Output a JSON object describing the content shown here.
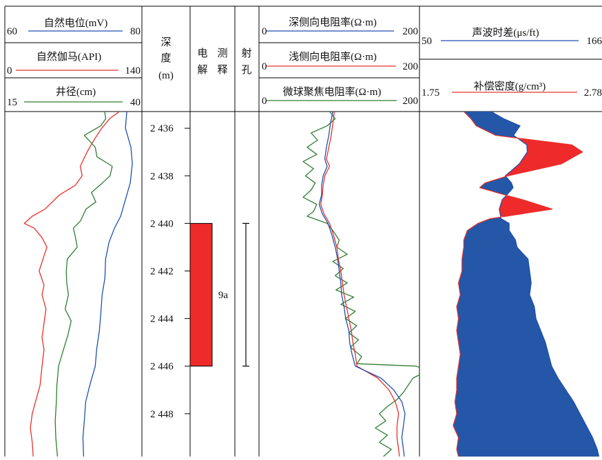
{
  "chart_data": {
    "type": "line",
    "title": "",
    "tracks": [
      {
        "id": "track1",
        "curves": [
          {
            "name": "自然电位(mV)",
            "min": "60",
            "max": "80",
            "color": "#1f4fb0"
          },
          {
            "name": "自然伽马(API)",
            "min": "0",
            "max": "140",
            "color": "#e8302a"
          },
          {
            "name": "井径(cm)",
            "min": "15",
            "max": "40",
            "color": "#2e7d32"
          }
        ]
      },
      {
        "id": "depth",
        "header": [
          "深",
          "度",
          "(m)"
        ],
        "ticks": [
          "2 436",
          "2 438",
          "2 440",
          "2 442",
          "2 444",
          "2 446",
          "2 448"
        ],
        "tick_depths": [
          2436,
          2438,
          2440,
          2442,
          2444,
          2446,
          2448
        ],
        "range_m": [
          2435.3,
          2449.8
        ]
      },
      {
        "id": "interp",
        "header": [
          "电",
          "测",
          "解",
          "释"
        ],
        "zone": {
          "top_m": 2440,
          "bottom_m": 2446,
          "label": "9a",
          "color": "#ee2a2a"
        }
      },
      {
        "id": "perf",
        "header": [
          "射",
          "孔"
        ],
        "interval": {
          "top_m": 2440,
          "bottom_m": 2446
        }
      },
      {
        "id": "track2",
        "curves": [
          {
            "name": "深侧向电阻率(Ω·m)",
            "min": "0",
            "max": "200",
            "color": "#1f4fb0"
          },
          {
            "name": "浅侧向电阻率(Ω·m)",
            "min": "0",
            "max": "200",
            "color": "#e8302a"
          },
          {
            "name": "微球聚焦电阻率(Ω·m)",
            "min": "0",
            "max": "200",
            "color": "#2e7d32"
          }
        ]
      },
      {
        "id": "track3",
        "curves": [
          {
            "name": "声波时差(μs/ft)",
            "min": "50",
            "max": "166",
            "color": "#1f4fb0"
          },
          {
            "name": "补偿密度(g/cm³)",
            "min": "1.75",
            "max": "2.78",
            "color": "#e8302a"
          }
        ],
        "fill_colors": {
          "sonic_gt": "#2457a8",
          "density_gt": "#ee2a2a"
        }
      }
    ],
    "curves_data": {
      "sp_mV": [
        [
          2435.3,
          77.8
        ],
        [
          2436,
          77.6
        ],
        [
          2436.8,
          78.4
        ],
        [
          2437.5,
          78.6
        ],
        [
          2438.3,
          78.3
        ],
        [
          2439,
          77.6
        ],
        [
          2439.7,
          76.9
        ],
        [
          2440.2,
          76
        ],
        [
          2440.8,
          75.2
        ],
        [
          2441.5,
          74.7
        ],
        [
          2442.3,
          74.6
        ],
        [
          2443,
          74.2
        ],
        [
          2443.8,
          74
        ],
        [
          2444.5,
          73.8
        ],
        [
          2445.3,
          73.4
        ],
        [
          2446,
          73.2
        ],
        [
          2446.8,
          72.4
        ],
        [
          2447.5,
          71.8
        ],
        [
          2448.3,
          71.6
        ],
        [
          2449,
          71.4
        ],
        [
          2449.8,
          71.5
        ]
      ],
      "gr_API": [
        [
          2435.3,
          117
        ],
        [
          2435.6,
          107
        ],
        [
          2436,
          99
        ],
        [
          2436.5,
          91
        ],
        [
          2437,
          84
        ],
        [
          2437.6,
          77
        ],
        [
          2438,
          79
        ],
        [
          2438.4,
          72
        ],
        [
          2438.8,
          56
        ],
        [
          2439.4,
          41
        ],
        [
          2439.7,
          28
        ],
        [
          2440,
          20
        ],
        [
          2440.2,
          30
        ],
        [
          2440.6,
          38
        ],
        [
          2441,
          43
        ],
        [
          2441.5,
          39
        ],
        [
          2442,
          35
        ],
        [
          2442.6,
          40
        ],
        [
          2443,
          38
        ],
        [
          2443.6,
          42
        ],
        [
          2444.2,
          40
        ],
        [
          2444.8,
          38
        ],
        [
          2445.3,
          40
        ],
        [
          2446,
          38
        ],
        [
          2446.8,
          36
        ],
        [
          2447.4,
          32
        ],
        [
          2448,
          28
        ],
        [
          2448.6,
          26
        ],
        [
          2449.2,
          28
        ],
        [
          2449.8,
          29
        ]
      ],
      "cal_cm": [
        [
          2435.3,
          33.2
        ],
        [
          2435.6,
          33.4
        ],
        [
          2435.9,
          32.5
        ],
        [
          2436.3,
          29.5
        ],
        [
          2436.8,
          31.5
        ],
        [
          2437.2,
          31.8
        ],
        [
          2437.6,
          34.6
        ],
        [
          2438,
          34.2
        ],
        [
          2438.3,
          32.8
        ],
        [
          2438.7,
          30.8
        ],
        [
          2439.1,
          31.6
        ],
        [
          2439.4,
          29.8
        ],
        [
          2439.9,
          28.8
        ],
        [
          2440.2,
          27.5
        ],
        [
          2440.6,
          27.9
        ],
        [
          2441,
          28.2
        ],
        [
          2441.5,
          26.4
        ],
        [
          2442,
          26.2
        ],
        [
          2442.5,
          26.3
        ],
        [
          2443,
          26.6
        ],
        [
          2443.6,
          26
        ],
        [
          2444.1,
          27.1
        ],
        [
          2444.7,
          26.5
        ],
        [
          2445.3,
          25.7
        ],
        [
          2446,
          24.8
        ],
        [
          2446.8,
          24.5
        ],
        [
          2447.5,
          24.4
        ],
        [
          2448.3,
          24.2
        ],
        [
          2449,
          24.3
        ],
        [
          2449.8,
          24.6
        ]
      ],
      "rd_ohmm": [
        [
          2435.3,
          92
        ],
        [
          2435.8,
          89
        ],
        [
          2436.3,
          87
        ],
        [
          2436.8,
          84
        ],
        [
          2437.3,
          82
        ],
        [
          2437.6,
          85
        ],
        [
          2438,
          80
        ],
        [
          2438.4,
          78
        ],
        [
          2438.8,
          78
        ],
        [
          2439.2,
          75
        ],
        [
          2439.6,
          79
        ],
        [
          2440,
          86
        ],
        [
          2440.5,
          91
        ],
        [
          2441,
          95
        ],
        [
          2441.5,
          98
        ],
        [
          2442,
          100
        ],
        [
          2442.5,
          102
        ],
        [
          2443,
          103
        ],
        [
          2443.5,
          106
        ],
        [
          2444,
          108
        ],
        [
          2444.5,
          112
        ],
        [
          2445,
          113
        ],
        [
          2445.5,
          116
        ],
        [
          2446,
          120
        ],
        [
          2446.5,
          152
        ],
        [
          2447,
          168
        ],
        [
          2447.5,
          178
        ],
        [
          2448,
          182
        ],
        [
          2448.5,
          180
        ],
        [
          2449,
          178
        ],
        [
          2449.5,
          180
        ],
        [
          2449.8,
          181
        ]
      ],
      "rs_ohmm": [
        [
          2435.3,
          94
        ],
        [
          2435.8,
          92
        ],
        [
          2436.3,
          90
        ],
        [
          2436.8,
          87
        ],
        [
          2437.3,
          84
        ],
        [
          2437.6,
          88
        ],
        [
          2438,
          82
        ],
        [
          2438.4,
          80
        ],
        [
          2438.8,
          79
        ],
        [
          2439.2,
          77
        ],
        [
          2439.6,
          81
        ],
        [
          2440,
          88
        ],
        [
          2440.5,
          93
        ],
        [
          2441,
          97
        ],
        [
          2441.5,
          99
        ],
        [
          2442,
          102
        ],
        [
          2442.5,
          104
        ],
        [
          2443,
          106
        ],
        [
          2443.5,
          109
        ],
        [
          2444,
          112
        ],
        [
          2444.5,
          115
        ],
        [
          2445,
          117
        ],
        [
          2445.5,
          120
        ],
        [
          2446,
          122
        ],
        [
          2446.5,
          148
        ],
        [
          2447,
          162
        ],
        [
          2447.5,
          170
        ],
        [
          2448,
          174
        ],
        [
          2448.5,
          172
        ],
        [
          2449,
          172
        ],
        [
          2449.5,
          174
        ],
        [
          2449.8,
          175
        ]
      ],
      "msfl_ohmm": [
        [
          2435.3,
          88
        ],
        [
          2435.6,
          95
        ],
        [
          2435.9,
          85
        ],
        [
          2436.2,
          65
        ],
        [
          2436.5,
          73
        ],
        [
          2436.8,
          60
        ],
        [
          2437.1,
          72
        ],
        [
          2437.4,
          55
        ],
        [
          2437.7,
          68
        ],
        [
          2438,
          58
        ],
        [
          2438.3,
          70
        ],
        [
          2438.6,
          65
        ],
        [
          2438.9,
          55
        ],
        [
          2439.2,
          72
        ],
        [
          2439.5,
          68
        ],
        [
          2439.7,
          60
        ],
        [
          2440,
          85
        ],
        [
          2440.3,
          92
        ],
        [
          2440.7,
          100
        ],
        [
          2441,
          97
        ],
        [
          2441.3,
          110
        ],
        [
          2441.6,
          92
        ],
        [
          2441.9,
          105
        ],
        [
          2442.2,
          95
        ],
        [
          2442.5,
          110
        ],
        [
          2442.8,
          96
        ],
        [
          2443.1,
          118
        ],
        [
          2443.4,
          102
        ],
        [
          2443.7,
          120
        ],
        [
          2444,
          108
        ],
        [
          2444.3,
          122
        ],
        [
          2444.6,
          112
        ],
        [
          2444.9,
          124
        ],
        [
          2445.2,
          114
        ],
        [
          2445.6,
          128
        ],
        [
          2445.9,
          122
        ],
        [
          2446,
          196
        ],
        [
          2446.2,
          210
        ],
        [
          2446.5,
          192
        ],
        [
          2446.8,
          186
        ],
        [
          2447.1,
          180
        ],
        [
          2447.4,
          172
        ],
        [
          2447.7,
          160
        ],
        [
          2448,
          150
        ],
        [
          2448.3,
          158
        ],
        [
          2448.6,
          145
        ],
        [
          2448.9,
          160
        ],
        [
          2449.2,
          150
        ],
        [
          2449.5,
          165
        ],
        [
          2449.8,
          155
        ]
      ],
      "ac_usft": [
        [
          2435.3,
          95.5
        ],
        [
          2435.6,
          103.5
        ],
        [
          2435.9,
          113.9
        ],
        [
          2436.3,
          109.8
        ],
        [
          2436.7,
          118.2
        ],
        [
          2437,
          118.5
        ],
        [
          2437.5,
          113.4
        ],
        [
          2438,
          104.5
        ],
        [
          2438.3,
          108.5
        ],
        [
          2438.5,
          109.5
        ],
        [
          2438.8,
          105.6
        ],
        [
          2439,
          102.6
        ],
        [
          2439.4,
          100.7
        ],
        [
          2439.8,
          101.8
        ],
        [
          2440,
          107
        ],
        [
          2440.3,
          107
        ],
        [
          2440.7,
          111
        ],
        [
          2441,
          112
        ],
        [
          2441.5,
          119
        ],
        [
          2442,
          120
        ],
        [
          2442.5,
          121
        ],
        [
          2443,
          120
        ],
        [
          2443.5,
          123
        ],
        [
          2444,
          124
        ],
        [
          2444.5,
          127
        ],
        [
          2445,
          130
        ],
        [
          2445.5,
          132
        ],
        [
          2446,
          134
        ],
        [
          2446.5,
          138
        ],
        [
          2447,
          143
        ],
        [
          2447.5,
          148
        ],
        [
          2448,
          152
        ],
        [
          2448.5,
          156
        ],
        [
          2449,
          160
        ],
        [
          2449.5,
          163
        ],
        [
          2449.8,
          164
        ]
      ],
      "den_gcm3": [
        [
          2435.3,
          2.0
        ],
        [
          2435.6,
          2.04
        ],
        [
          2435.9,
          2.07
        ],
        [
          2436.3,
          2.18
        ],
        [
          2436.7,
          2.61
        ],
        [
          2437,
          2.67
        ],
        [
          2437.5,
          2.55
        ],
        [
          2438,
          2.25
        ],
        [
          2438.3,
          2.12
        ],
        [
          2438.5,
          2.09
        ],
        [
          2438.8,
          2.23
        ],
        [
          2439,
          2.33
        ],
        [
          2439.4,
          2.5
        ],
        [
          2439.8,
          2.15
        ],
        [
          2440,
          2.08
        ],
        [
          2440.3,
          2.02
        ],
        [
          2440.7,
          2.0
        ],
        [
          2441,
          2.0
        ],
        [
          2441.5,
          1.99
        ],
        [
          2442,
          1.99
        ],
        [
          2442.5,
          1.97
        ],
        [
          2443,
          1.98
        ],
        [
          2443.5,
          1.96
        ],
        [
          2444,
          1.97
        ],
        [
          2444.5,
          1.96
        ],
        [
          2445,
          1.97
        ],
        [
          2445.5,
          1.98
        ],
        [
          2446,
          1.97
        ],
        [
          2446.5,
          1.96
        ],
        [
          2447,
          1.96
        ],
        [
          2447.5,
          1.95
        ],
        [
          2448,
          1.96
        ],
        [
          2448.5,
          1.94
        ],
        [
          2449,
          1.97
        ],
        [
          2449.5,
          1.96
        ],
        [
          2449.8,
          1.97
        ]
      ]
    }
  }
}
